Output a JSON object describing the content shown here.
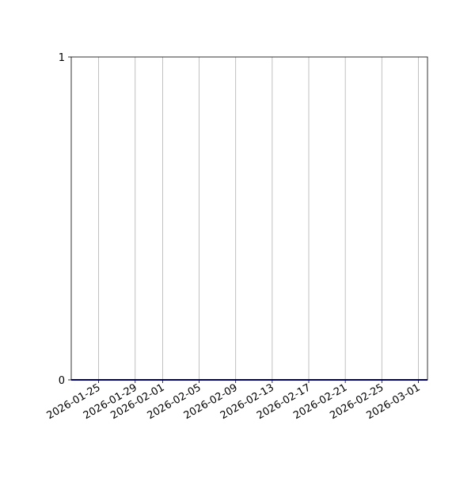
{
  "chart_data": {
    "type": "line",
    "title": "",
    "xlabel": "",
    "ylabel": "",
    "x_axis_type": "date",
    "xlim": [
      "2026-01-22",
      "2026-03-02"
    ],
    "ylim": [
      0,
      1
    ],
    "x_ticks": [
      "2026-01-25",
      "2026-01-29",
      "2026-02-01",
      "2026-02-05",
      "2026-02-09",
      "2026-02-13",
      "2026-02-17",
      "2026-02-21",
      "2026-02-25",
      "2026-03-01"
    ],
    "y_ticks": [
      0,
      1
    ],
    "grid": {
      "x": true,
      "y": false
    },
    "series": [
      {
        "x": [
          "2026-01-22",
          "2026-03-02"
        ],
        "y": [
          0,
          0
        ],
        "color": "#0000b0"
      }
    ],
    "grid_color": "#b0b0b0"
  }
}
